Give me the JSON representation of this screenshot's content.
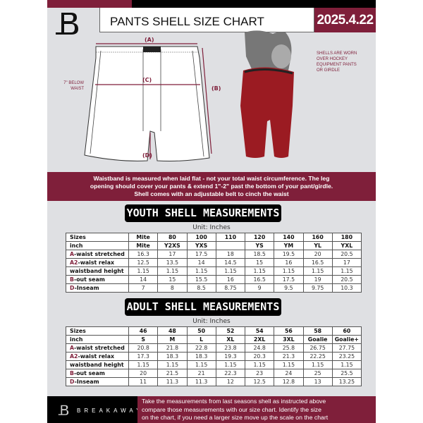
{
  "header": {
    "title": "PANTS SHELL SIZE CHART",
    "date": "2025.4.22"
  },
  "diagram": {
    "label_a": "(A)",
    "label_b": "(B)",
    "label_c": "(C)",
    "label_d": "(D)",
    "below_waist_line1": "7\" BELOW",
    "below_waist_line2": "WAIST",
    "note_lines": [
      "SHELLS ARE WORN",
      "OVER HOCKEY",
      "EQUIPMENT PANTS",
      "OR GIRDLE"
    ]
  },
  "banner": {
    "lines": [
      "Waistband is measured when laid flat - not your total waist circumference. The leg",
      "opening should cover your pants & extend 1\"-2\" past the bottom of your pant/girdle.",
      "Shell comes with an adjustable belt to cinch the waist"
    ]
  },
  "youth": {
    "title": "YOUTH SHELL MEASUREMENTS",
    "unit": "Unit: Inches",
    "rows": [
      {
        "prefix": "",
        "label": "Sizes",
        "values": [
          "Mite",
          "80",
          "100",
          "110",
          "120",
          "140",
          "160",
          "180"
        ]
      },
      {
        "prefix": "",
        "label": "inch",
        "values": [
          "Mite",
          "Y2XS",
          "YXS",
          "",
          "YS",
          "YM",
          "YL",
          "YXL"
        ]
      },
      {
        "prefix": "A",
        "label": "-waist stretched",
        "values": [
          "16.3",
          "17",
          "17.5",
          "18",
          "18.5",
          "19.5",
          "20",
          "20.5"
        ]
      },
      {
        "prefix": "A2",
        "label": "-waist relax",
        "values": [
          "12.5",
          "13.5",
          "14",
          "14.5",
          "15",
          "16",
          "16.5",
          "17"
        ]
      },
      {
        "prefix": "",
        "label": "waistband height",
        "values": [
          "1.15",
          "1.15",
          "1.15",
          "1.15",
          "1.15",
          "1.15",
          "1.15",
          "1.15"
        ]
      },
      {
        "prefix": "B",
        "label": "-out seam",
        "values": [
          "14",
          "15",
          "15.5",
          "16",
          "16.5",
          "17.5",
          "19",
          "20.5"
        ]
      },
      {
        "prefix": "D",
        "label": "-Inseam",
        "values": [
          "7",
          "8",
          "8.5",
          "8.75",
          "9",
          "9.5",
          "9.75",
          "10.3"
        ]
      }
    ]
  },
  "adult": {
    "title": "ADULT SHELL MEASUREMENTS",
    "unit": "Unit: Inches",
    "rows": [
      {
        "prefix": "",
        "label": "Sizes",
        "values": [
          "46",
          "48",
          "50",
          "52",
          "54",
          "56",
          "58",
          "60"
        ]
      },
      {
        "prefix": "",
        "label": "inch",
        "values": [
          "S",
          "M",
          "L",
          "XL",
          "2XL",
          "3XL",
          "Goalie",
          "Goalie+"
        ]
      },
      {
        "prefix": "A",
        "label": "-waist stretched",
        "values": [
          "20.8",
          "21.8",
          "22.8",
          "23.8",
          "24.8",
          "25.8",
          "26.75",
          "27.75"
        ]
      },
      {
        "prefix": "A2",
        "label": "-waist relax",
        "values": [
          "17.3",
          "18.3",
          "18.3",
          "19.3",
          "20.3",
          "21.3",
          "22.25",
          "23.25"
        ]
      },
      {
        "prefix": "",
        "label": "waistband height",
        "values": [
          "1.15",
          "1.15",
          "1.15",
          "1.15",
          "1.15",
          "1.15",
          "1.15",
          "1.15"
        ]
      },
      {
        "prefix": "B",
        "label": "-out seam",
        "values": [
          "20",
          "21.5",
          "21",
          "22.3",
          "23",
          "24",
          "25",
          "25.5"
        ]
      },
      {
        "prefix": "D",
        "label": "-Inseam",
        "values": [
          "11",
          "11.3",
          "11.3",
          "12",
          "12.5",
          "12.8",
          "13",
          "13.25"
        ]
      }
    ]
  },
  "footer": {
    "brand": "BREAKAWAY",
    "lines": [
      "Take the measurements from last seasons shell as instructed above",
      "compare those measurements  with our size chart. Identify the size",
      "on the chart, if you need a larger size move up the scale on the chart"
    ]
  },
  "colors": {
    "accent": "#7f1f3a",
    "dark": "#000000",
    "background": "#dfe0e3"
  }
}
